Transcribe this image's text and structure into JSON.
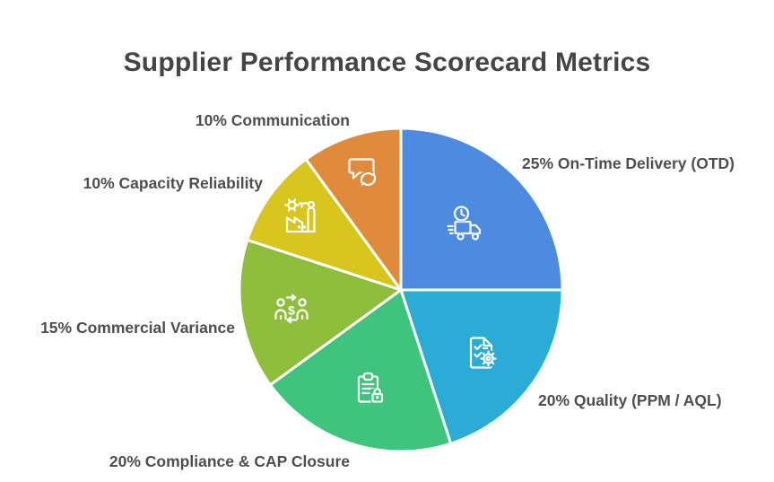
{
  "colors": {
    "background": "#FFFFFF",
    "title_text": "#454545",
    "label_text": "#4F4E4E",
    "slice_border": "#FFFFFF"
  },
  "chart_data": {
    "type": "pie",
    "title": "Supplier Performance Scorecard Metrics",
    "start_angle_deg": 0,
    "direction": "clockwise",
    "legend_position": "none",
    "labels_outside": true,
    "slices": [
      {
        "label": "On-Time Delivery (OTD)",
        "value_pct": 25,
        "display": "25% On-Time Delivery (OTD)",
        "color": "#4D8BE0",
        "icon": "delivery-truck-clock-icon"
      },
      {
        "label": "Quality (PPM / AQL)",
        "value_pct": 20,
        "display": "20% Quality (PPM / AQL)",
        "color": "#2BACD6",
        "icon": "document-checklist-gear-icon"
      },
      {
        "label": "Compliance & CAP Closure",
        "value_pct": 20,
        "display": "20% Compliance & CAP Closure",
        "color": "#3EC47D",
        "icon": "clipboard-lock-icon"
      },
      {
        "label": "Commercial Variance",
        "value_pct": 15,
        "display": "15% Commercial Variance",
        "color": "#8FBE3D",
        "icon": "people-currency-exchange-icon"
      },
      {
        "label": "Capacity Reliability",
        "value_pct": 10,
        "display": "10% Capacity Reliability",
        "color": "#D8C51E",
        "icon": "factory-icon"
      },
      {
        "label": "Communication",
        "value_pct": 10,
        "display": "10% Communication",
        "color": "#E08A3C",
        "icon": "chat-sync-icon"
      }
    ]
  }
}
